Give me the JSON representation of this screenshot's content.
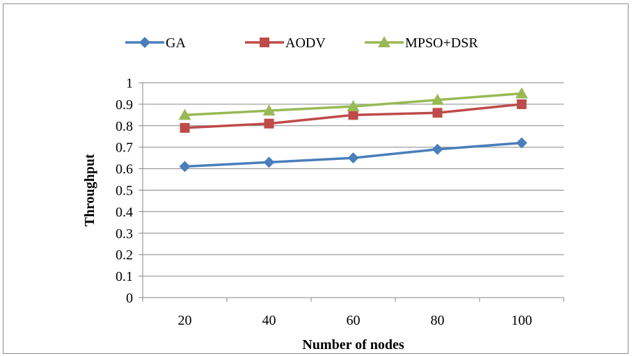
{
  "chart_data": {
    "type": "line",
    "categories": [
      "20",
      "40",
      "60",
      "80",
      "100"
    ],
    "series": [
      {
        "name": "GA",
        "values": [
          0.61,
          0.63,
          0.65,
          0.69,
          0.72
        ],
        "color": "#4a7ebb",
        "marker": "diamond"
      },
      {
        "name": "AODV",
        "values": [
          0.79,
          0.81,
          0.85,
          0.86,
          0.9
        ],
        "color": "#be4b48",
        "marker": "square"
      },
      {
        "name": "MPSO+DSR",
        "values": [
          0.85,
          0.87,
          0.89,
          0.92,
          0.95
        ],
        "color": "#98b954",
        "marker": "triangle"
      }
    ],
    "y_ticks": [
      "0",
      "0.1",
      "0.2",
      "0.3",
      "0.4",
      "0.5",
      "0.6",
      "0.7",
      "0.8",
      "0.9",
      "1"
    ],
    "xlabel": "Number of nodes",
    "ylabel": "Throughput",
    "ylim": [
      0,
      1
    ],
    "grid": true,
    "legend": "top"
  }
}
